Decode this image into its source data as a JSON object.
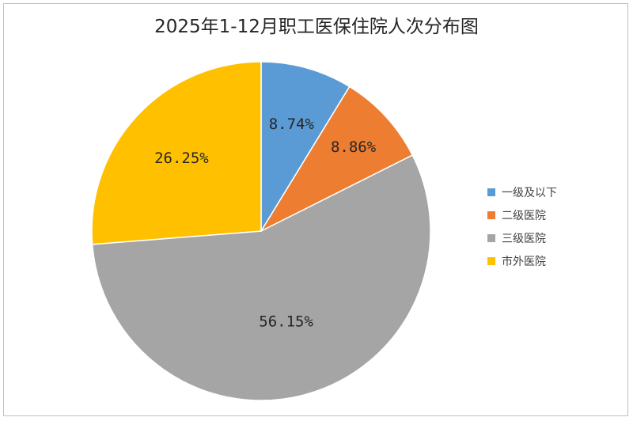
{
  "chart_data": {
    "type": "pie",
    "title": "2025年1-12月职工医保住院人次分布图",
    "slices": [
      {
        "label": "一级及以下",
        "value": 8.74,
        "text": "8.74%",
        "color": "#5b9bd5"
      },
      {
        "label": "二级医院",
        "value": 8.86,
        "text": "8.86%",
        "color": "#ed7d31"
      },
      {
        "label": "三级医院",
        "value": 56.15,
        "text": "56.15%",
        "color": "#a5a5a5"
      },
      {
        "label": "市外医院",
        "value": 26.25,
        "text": "26.25%",
        "color": "#ffc000"
      }
    ],
    "start_angle": "12 o'clock",
    "direction": "clockwise",
    "legend_position": "right"
  }
}
